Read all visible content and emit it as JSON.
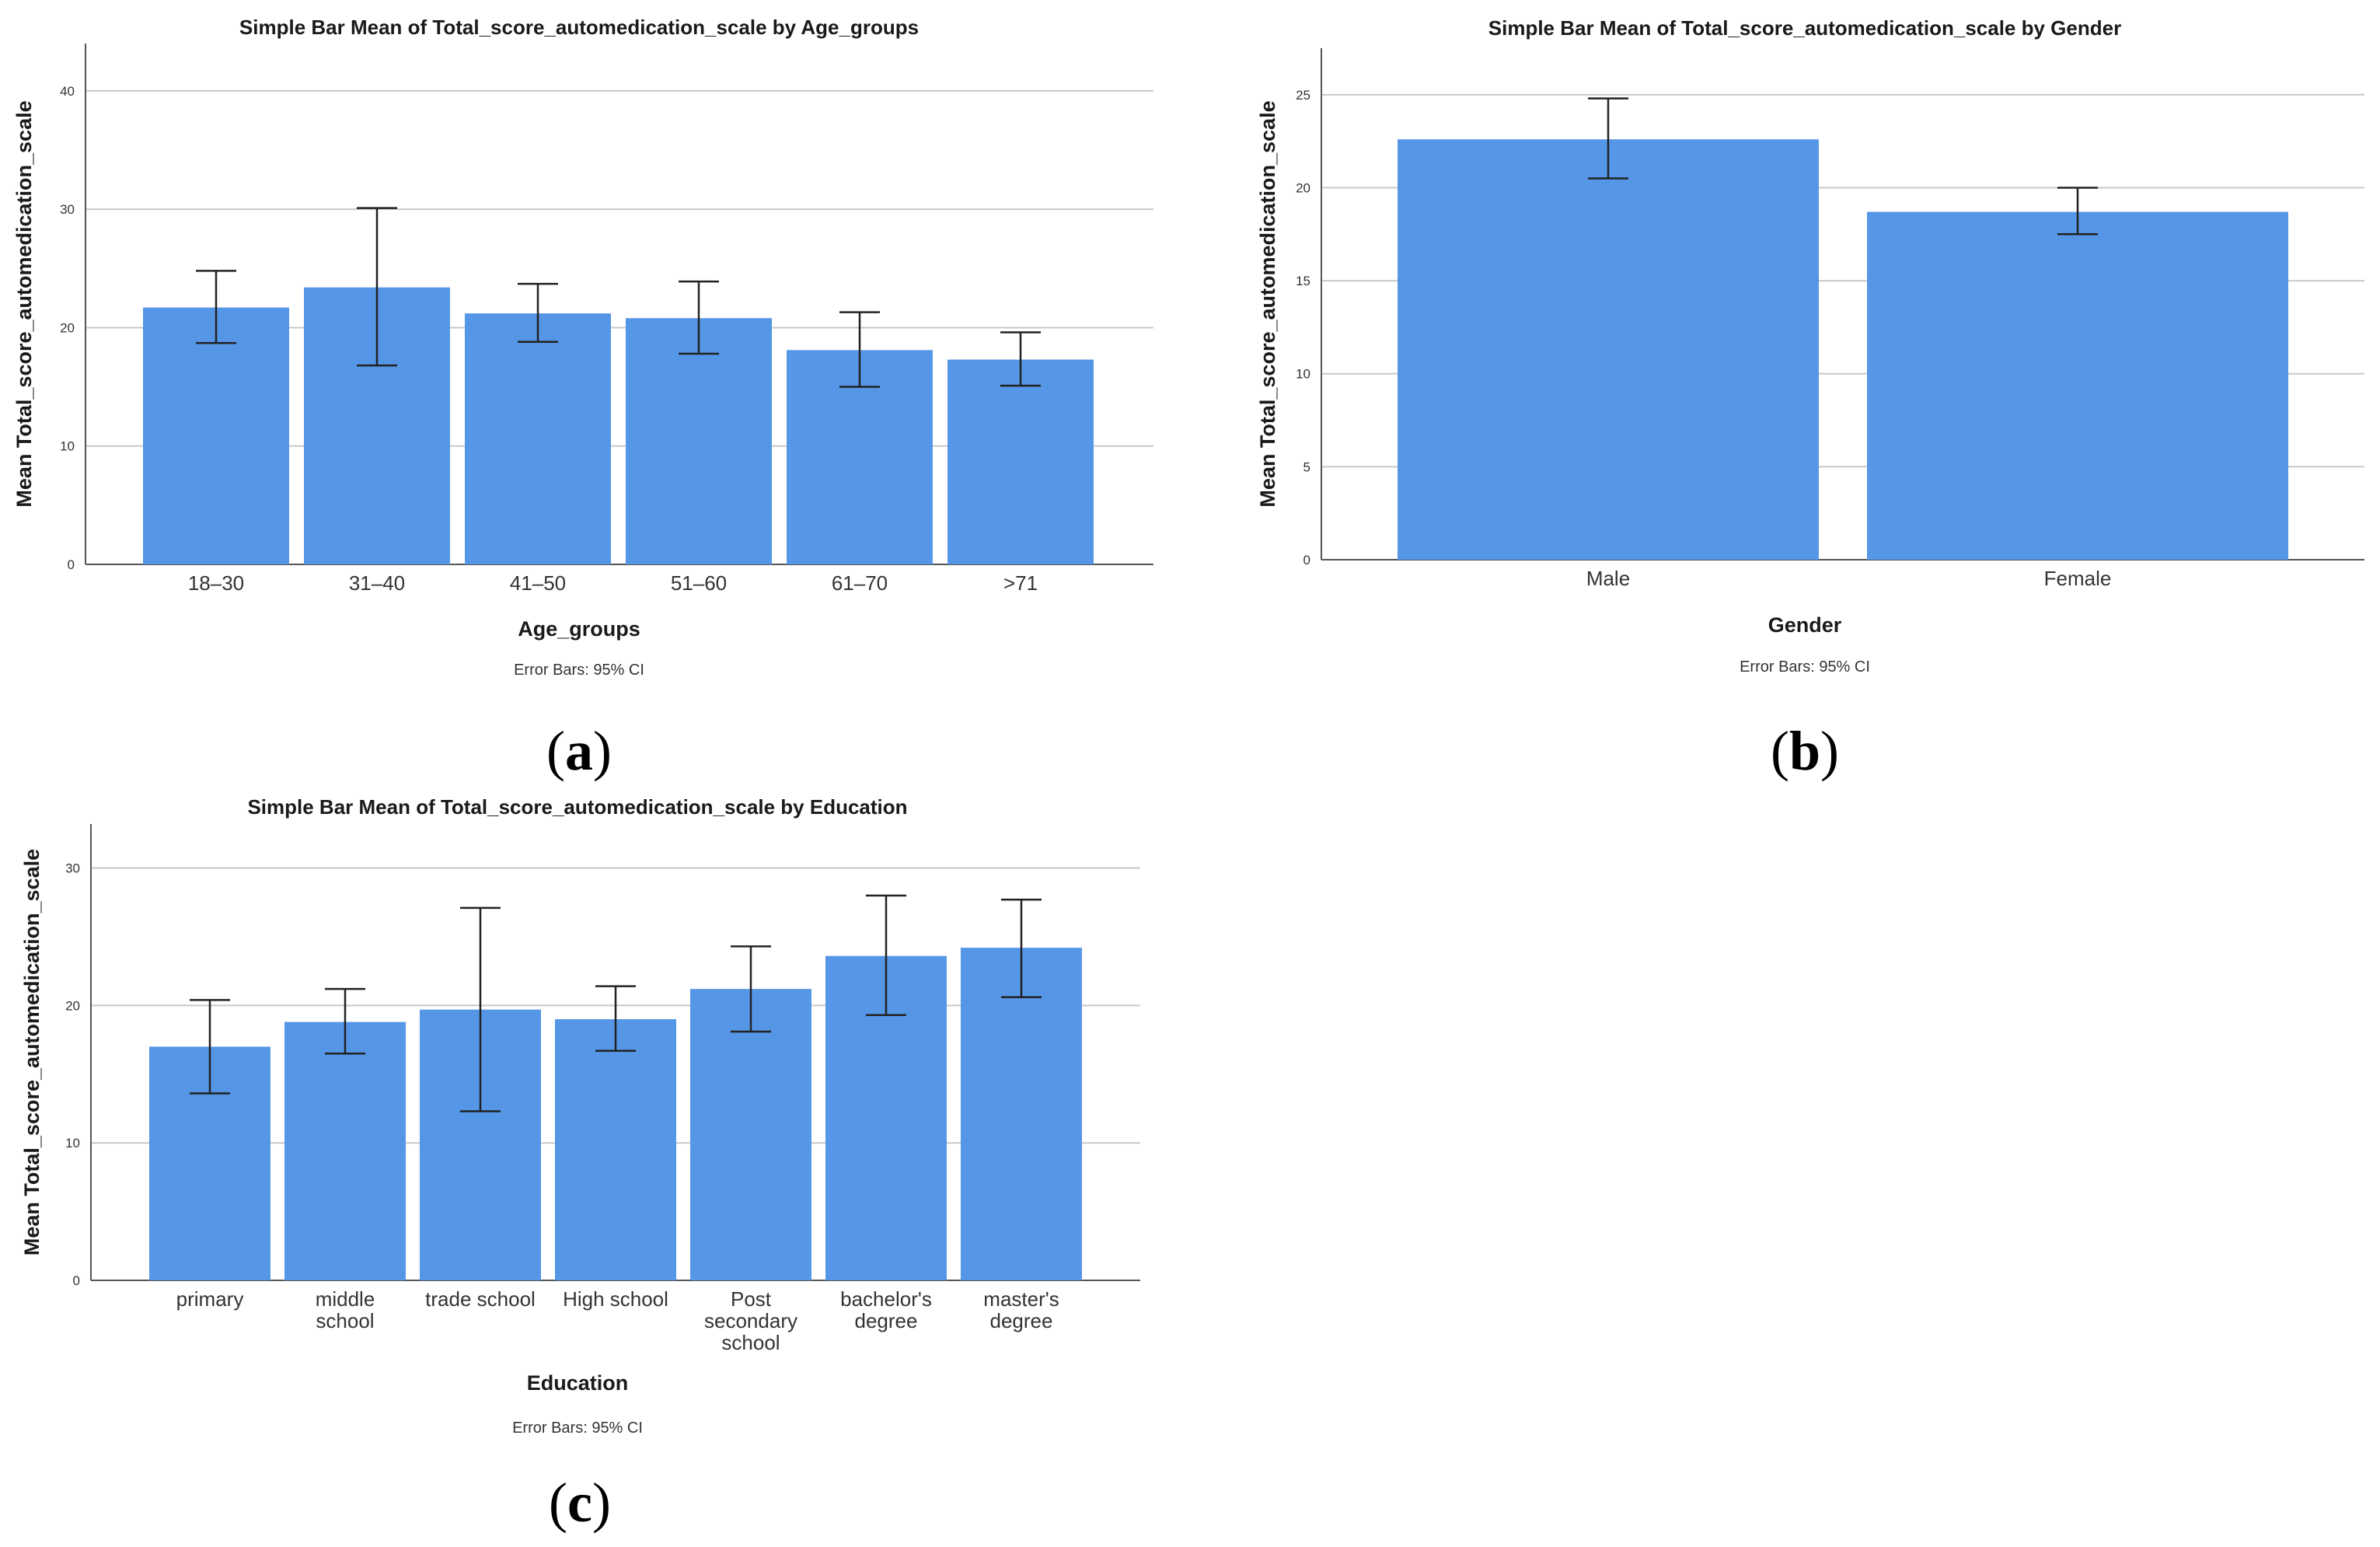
{
  "chart_data": [
    {
      "type": "bar",
      "panel": "(a)",
      "title": "Simple Bar Mean of Total_score_automedication_scale by Age_groups",
      "xlabel": "Age_groups",
      "ylabel": "Mean Total_score_automedication_scale",
      "note": "Error Bars: 95% CI",
      "categories": [
        "18–30",
        "31–40",
        "41–50",
        "51–60",
        "61–70",
        ">71"
      ],
      "values": [
        21.7,
        23.4,
        21.2,
        20.8,
        18.1,
        17.3
      ],
      "ci_low": [
        18.7,
        16.8,
        18.8,
        17.8,
        15.0,
        15.1
      ],
      "ci_high": [
        24.8,
        30.1,
        23.7,
        23.9,
        21.3,
        19.6
      ],
      "ylim": [
        0,
        44
      ],
      "yticks": [
        0,
        10,
        20,
        30,
        40
      ],
      "grid": true,
      "bar_color": "#5596e6"
    },
    {
      "type": "bar",
      "panel": "(b)",
      "title": "Simple Bar Mean of Total_score_automedication_scale by Gender",
      "xlabel": "Gender",
      "ylabel": "Mean Total_score_automedication_scale",
      "note": "Error Bars: 95% CI",
      "categories": [
        "Male",
        "Female"
      ],
      "values": [
        22.6,
        18.7
      ],
      "ci_low": [
        20.5,
        17.5
      ],
      "ci_high": [
        24.8,
        20.0
      ],
      "ylim": [
        0,
        27.5
      ],
      "yticks": [
        0,
        5,
        10,
        15,
        20,
        25
      ],
      "grid": true,
      "bar_color": "#5596e6"
    },
    {
      "type": "bar",
      "panel": "(c)",
      "title": "Simple Bar Mean of Total_score_automedication_scale by Education",
      "xlabel": "Education",
      "ylabel": "Mean Total_score_automedication_scale",
      "note": "Error Bars: 95% CI",
      "categories": [
        "primary",
        "middle school",
        "trade school",
        "High school",
        "Post secondary school",
        "bachelor's degree",
        "master's degree"
      ],
      "category_lines": [
        [
          "primary"
        ],
        [
          "middle",
          "school"
        ],
        [
          "trade school"
        ],
        [
          "High school"
        ],
        [
          "Post",
          "secondary",
          "school"
        ],
        [
          "bachelor's",
          "degree"
        ],
        [
          "master's",
          "degree"
        ]
      ],
      "values": [
        17.0,
        18.8,
        19.7,
        19.0,
        21.2,
        23.6,
        24.2
      ],
      "ci_low": [
        13.6,
        16.5,
        12.3,
        16.7,
        18.1,
        19.3,
        20.6
      ],
      "ci_high": [
        20.4,
        21.2,
        27.1,
        21.4,
        24.3,
        28.0,
        27.7
      ],
      "ylim": [
        0,
        33.2
      ],
      "yticks": [
        0,
        10,
        20,
        30
      ],
      "grid": true,
      "bar_color": "#5596e6"
    }
  ]
}
